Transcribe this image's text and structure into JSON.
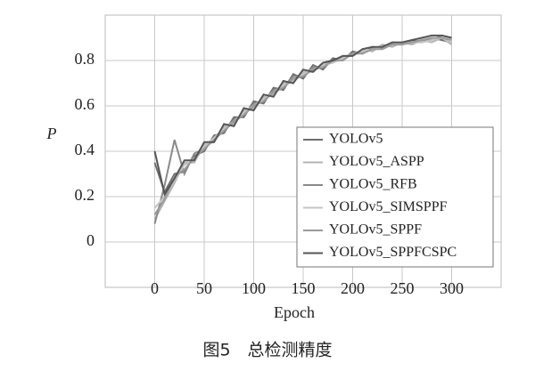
{
  "chart_data": {
    "type": "line",
    "x_label": "Epoch",
    "y_label": "P",
    "caption": "图5　总检测精度",
    "x": [
      0,
      10,
      20,
      30,
      40,
      50,
      60,
      70,
      80,
      90,
      100,
      110,
      120,
      130,
      140,
      150,
      160,
      170,
      180,
      190,
      200,
      210,
      220,
      230,
      240,
      250,
      260,
      270,
      280,
      290,
      300
    ],
    "series": [
      {
        "name": "YOLOv5",
        "color": "#6e6e6e",
        "values": [
          0.35,
          0.22,
          0.3,
          0.31,
          0.38,
          0.4,
          0.47,
          0.48,
          0.55,
          0.55,
          0.62,
          0.61,
          0.68,
          0.67,
          0.74,
          0.72,
          0.78,
          0.76,
          0.81,
          0.8,
          0.84,
          0.83,
          0.86,
          0.85,
          0.88,
          0.87,
          0.89,
          0.88,
          0.9,
          0.89,
          0.88
        ]
      },
      {
        "name": "YOLOv5_ASPP",
        "color": "#b5b5b5",
        "values": [
          0.1,
          0.18,
          0.26,
          0.35,
          0.35,
          0.43,
          0.44,
          0.51,
          0.52,
          0.58,
          0.59,
          0.64,
          0.65,
          0.7,
          0.71,
          0.75,
          0.75,
          0.79,
          0.79,
          0.82,
          0.82,
          0.85,
          0.84,
          0.87,
          0.86,
          0.88,
          0.87,
          0.89,
          0.88,
          0.9,
          0.87
        ]
      },
      {
        "name": "YOLOv5_RFB",
        "color": "#8a8a8a",
        "values": [
          0.08,
          0.25,
          0.45,
          0.3,
          0.39,
          0.41,
          0.46,
          0.49,
          0.54,
          0.56,
          0.61,
          0.62,
          0.67,
          0.68,
          0.73,
          0.73,
          0.77,
          0.77,
          0.8,
          0.81,
          0.83,
          0.84,
          0.85,
          0.86,
          0.87,
          0.88,
          0.88,
          0.89,
          0.89,
          0.91,
          0.9
        ]
      },
      {
        "name": "YOLOv5_SIMSPPF",
        "color": "#c4c4c4",
        "values": [
          0.15,
          0.2,
          0.27,
          0.34,
          0.36,
          0.42,
          0.46,
          0.5,
          0.53,
          0.57,
          0.6,
          0.63,
          0.66,
          0.69,
          0.71,
          0.74,
          0.76,
          0.78,
          0.79,
          0.81,
          0.83,
          0.84,
          0.85,
          0.86,
          0.87,
          0.88,
          0.88,
          0.88,
          0.89,
          0.9,
          0.88
        ]
      },
      {
        "name": "YOLOv5_SPPF",
        "color": "#9a9a9a",
        "values": [
          0.12,
          0.19,
          0.29,
          0.32,
          0.37,
          0.41,
          0.45,
          0.49,
          0.53,
          0.56,
          0.6,
          0.62,
          0.66,
          0.68,
          0.72,
          0.73,
          0.76,
          0.77,
          0.8,
          0.8,
          0.83,
          0.83,
          0.85,
          0.85,
          0.87,
          0.87,
          0.88,
          0.89,
          0.9,
          0.9,
          0.89
        ]
      },
      {
        "name": "YOLOv5_SPPFCSPC",
        "color": "#555555",
        "values": [
          0.4,
          0.21,
          0.28,
          0.36,
          0.36,
          0.44,
          0.44,
          0.52,
          0.51,
          0.59,
          0.58,
          0.65,
          0.64,
          0.71,
          0.7,
          0.76,
          0.75,
          0.79,
          0.8,
          0.82,
          0.82,
          0.85,
          0.86,
          0.86,
          0.88,
          0.88,
          0.89,
          0.9,
          0.91,
          0.91,
          0.9
        ]
      }
    ],
    "xlim": [
      -50,
      350
    ],
    "xticks": [
      0,
      50,
      100,
      150,
      200,
      250,
      300
    ],
    "ylim": [
      -0.2,
      1.0
    ],
    "yticks": [
      0,
      0.2,
      0.4,
      0.6,
      0.8
    ],
    "grid": true,
    "legend": "lower right"
  }
}
